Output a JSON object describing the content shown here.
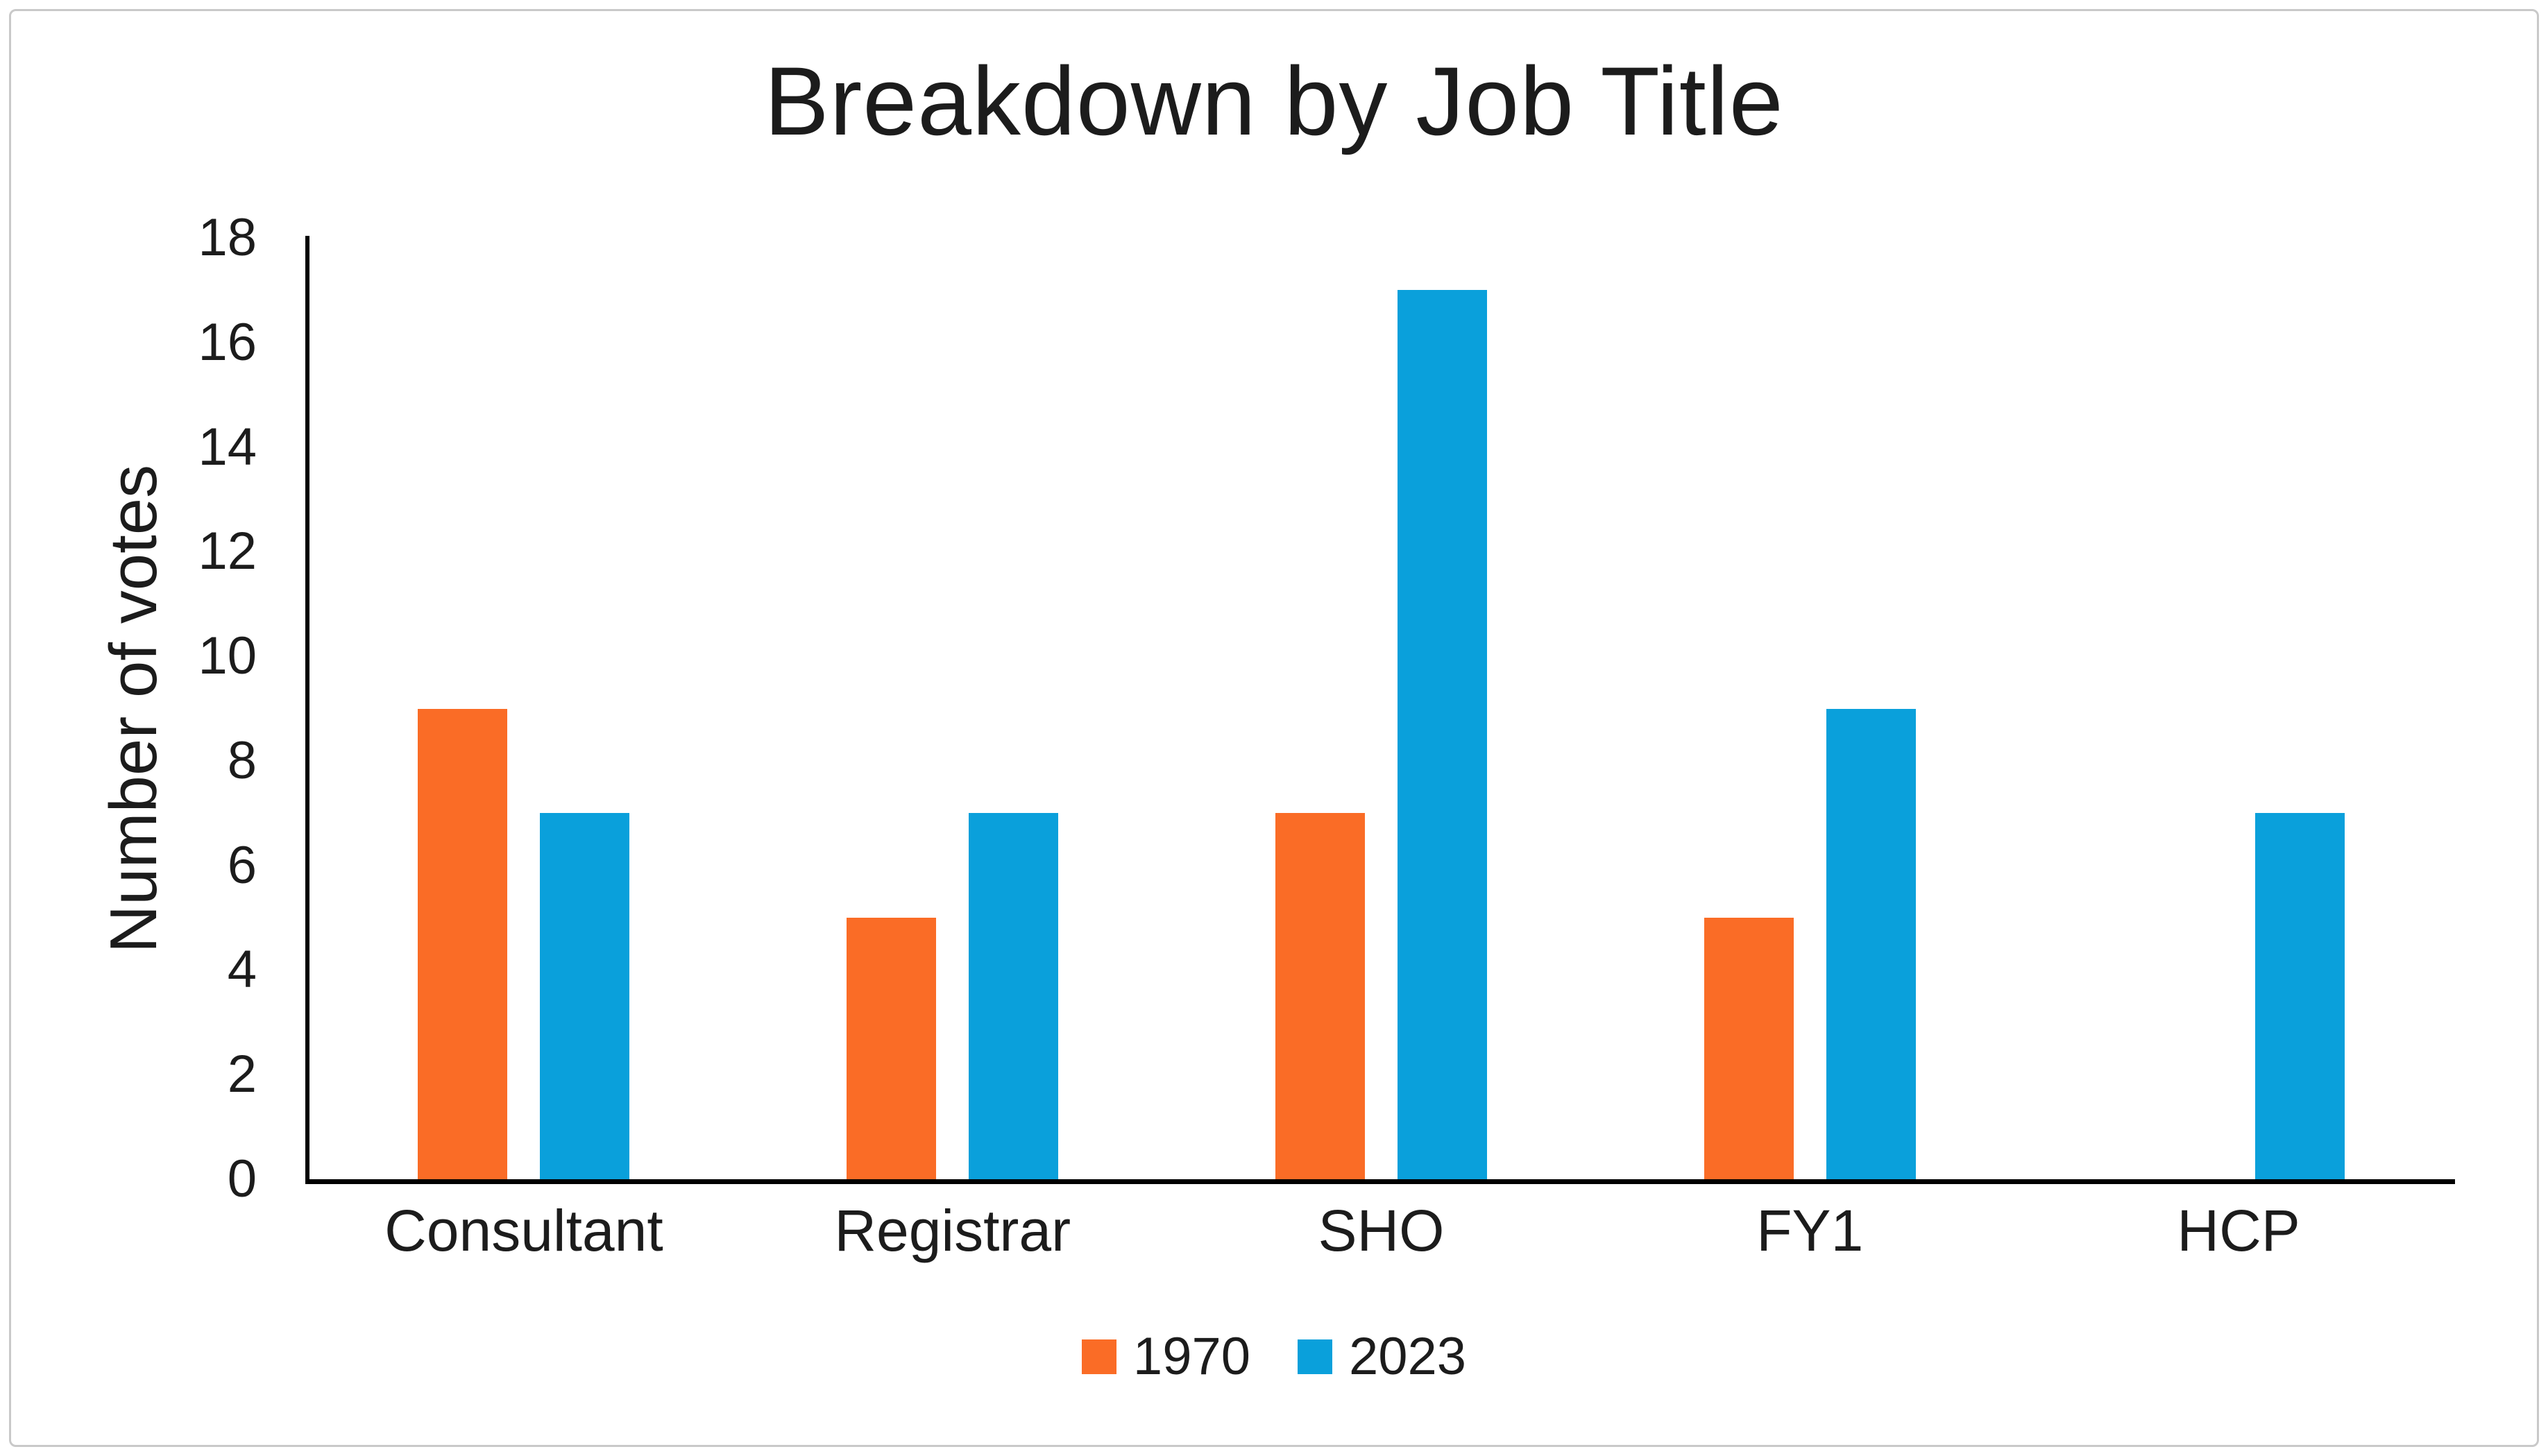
{
  "chart_data": {
    "type": "bar",
    "title": "Breakdown by Job Title",
    "xlabel": "",
    "ylabel": "Number of votes",
    "categories": [
      "Consultant",
      "Registrar",
      "SHO",
      "FY1",
      "HCP"
    ],
    "series": [
      {
        "name": "1970",
        "color": "#FA6C26",
        "values": [
          9,
          5,
          7,
          5,
          0
        ]
      },
      {
        "name": "2023",
        "color": "#0AA0DB",
        "values": [
          7,
          7,
          17,
          9,
          7
        ]
      }
    ],
    "ylim": [
      0,
      18
    ],
    "ytick_step": 2,
    "grid": false,
    "legend_position": "bottom",
    "axis_color": "#000000",
    "text_color": "#1c1c1c"
  }
}
